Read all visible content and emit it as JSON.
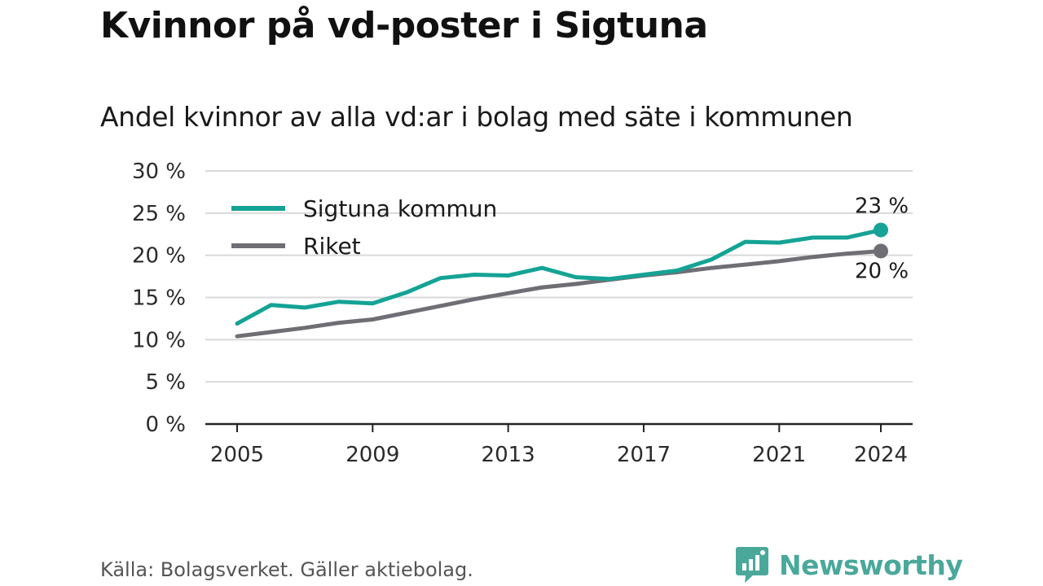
{
  "header": {
    "title": "Kvinnor på vd-poster i Sigtuna",
    "subtitle": "Andel kvinnor av alla vd:ar i bolag med säte i kommunen"
  },
  "footer": {
    "source": "Källa: Bolagsverket. Gäller aktiebolag.",
    "brand": "Newsworthy"
  },
  "colors": {
    "sigtuna": "#14a395",
    "riket": "#6f6e74",
    "grid": "#d9d9d9",
    "axis": "#222222",
    "brand": "#4aa89b"
  },
  "chart_data": {
    "type": "line",
    "x": [
      2005,
      2006,
      2007,
      2008,
      2009,
      2010,
      2011,
      2012,
      2013,
      2014,
      2015,
      2016,
      2017,
      2018,
      2019,
      2020,
      2021,
      2022,
      2023,
      2024
    ],
    "series": [
      {
        "name": "Sigtuna kommun",
        "values": [
          11.9,
          14.1,
          13.8,
          14.5,
          14.3,
          15.6,
          17.3,
          17.7,
          17.6,
          18.5,
          17.4,
          17.2,
          17.7,
          18.2,
          19.5,
          21.6,
          21.5,
          22.1,
          22.1,
          23.0
        ],
        "end_label": "23 %"
      },
      {
        "name": "Riket",
        "values": [
          10.4,
          10.9,
          11.4,
          12.0,
          12.4,
          13.2,
          14.0,
          14.8,
          15.5,
          16.2,
          16.6,
          17.1,
          17.6,
          18.0,
          18.5,
          18.9,
          19.3,
          19.8,
          20.2,
          20.5
        ],
        "end_label": "20 %"
      }
    ],
    "xticks": [
      2005,
      2009,
      2013,
      2017,
      2021,
      2024
    ],
    "xtick_labels": [
      "2005",
      "2009",
      "2013",
      "2017",
      "2021",
      "2024"
    ],
    "yticks": [
      0,
      5,
      10,
      15,
      20,
      25,
      30
    ],
    "ytick_labels": [
      "0 %",
      "5 %",
      "10 %",
      "15 %",
      "20 %",
      "25 %",
      "30 %"
    ],
    "xlim": [
      2005,
      2024
    ],
    "ylim": [
      0,
      30
    ],
    "grid": true,
    "legend": "top-left"
  }
}
